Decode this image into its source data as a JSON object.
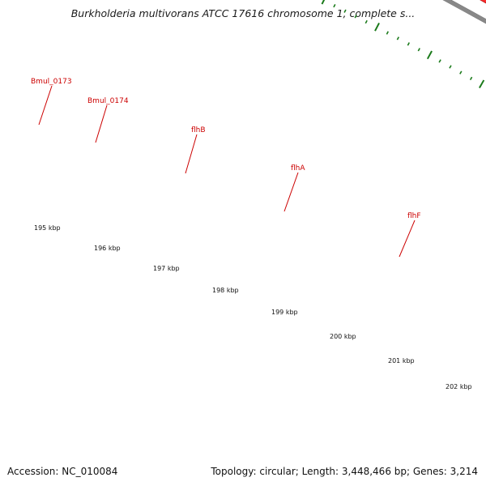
{
  "map": {
    "title": "Burkholderia multivorans ATCC 17616 chromosome 1, complete s...",
    "accession_text": "Accession: NC_010084",
    "topology_text": "Topology: circular; Length: 3,448,466 bp; Genes: 3,214"
  },
  "colors": {
    "gene_red": "#ee1111",
    "gene_red_dark": "#aa0000",
    "backbone": "#888888",
    "tick_green": "#1a7a1a",
    "feature_lime": "#aaee44",
    "feature_green": "#2a8a2a",
    "feature_khaki": "#eee599",
    "label_red": "#cc0000"
  },
  "gene_labels": [
    "Bmul_0173",
    "Bmul_0174",
    "flhB",
    "flhA",
    "flhF"
  ],
  "scale_labels": [
    "195 kbp",
    "196 kbp",
    "197 kbp",
    "198 kbp",
    "199 kbp",
    "200 kbp",
    "201 kbp",
    "202 kbp"
  ]
}
